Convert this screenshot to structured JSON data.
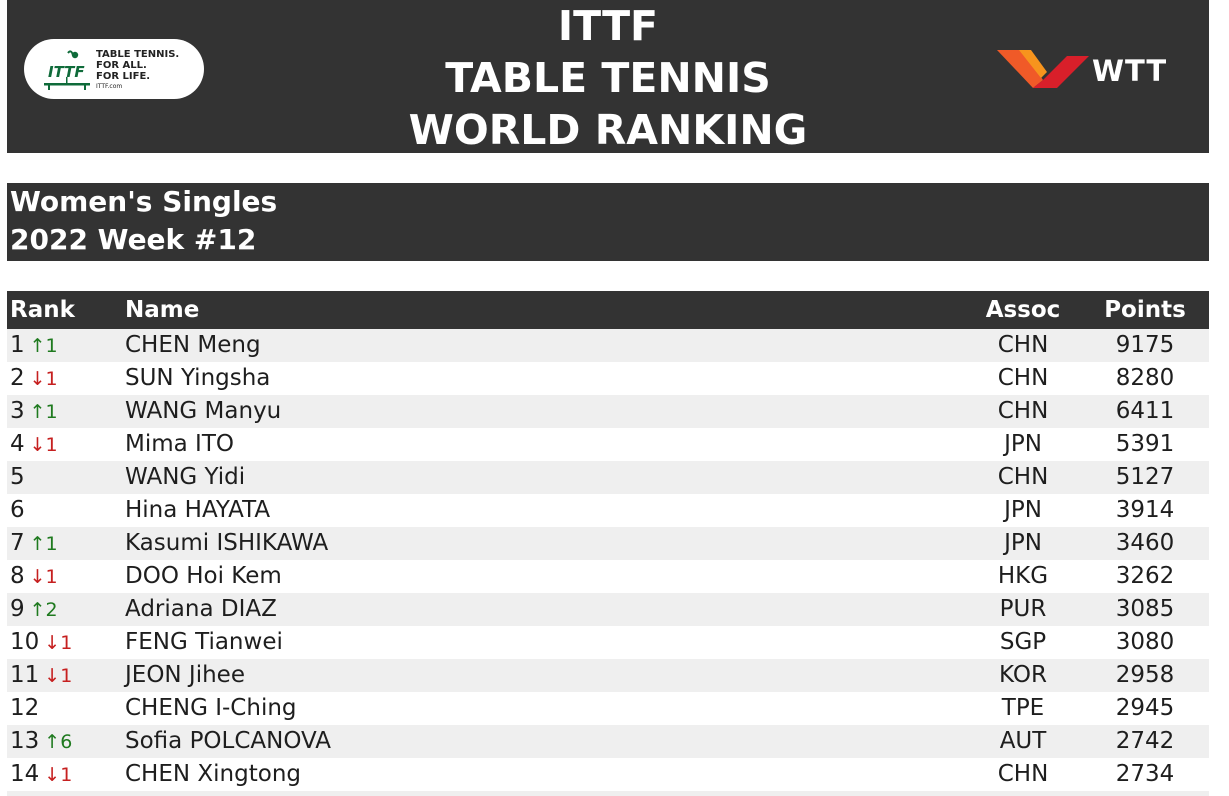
{
  "banner": {
    "title_lines": [
      "ITTF",
      "TABLE TENNIS",
      "WORLD RANKING"
    ],
    "ittf_logo": {
      "icon": "ittf-table-tennis-logo",
      "tagline": [
        "TABLE TENNIS.",
        "FOR ALL.",
        "FOR LIFE."
      ],
      "site": "ITTF.com"
    },
    "wtt_logo": {
      "icon": "wtt-logo-mark",
      "text": "WTT"
    }
  },
  "section": {
    "event": "Women's Singles",
    "week": "2022 Week #12"
  },
  "table": {
    "columns": {
      "rank": "Rank",
      "name": "Name",
      "assoc": "Assoc",
      "points": "Points"
    },
    "rows": [
      {
        "rank": "1",
        "move": "↑1",
        "dir": "up",
        "name": "CHEN Meng",
        "assoc": "CHN",
        "points": "9175"
      },
      {
        "rank": "2",
        "move": "↓1",
        "dir": "down",
        "name": "SUN Yingsha",
        "assoc": "CHN",
        "points": "8280"
      },
      {
        "rank": "3",
        "move": "↑1",
        "dir": "up",
        "name": "WANG Manyu",
        "assoc": "CHN",
        "points": "6411"
      },
      {
        "rank": "4",
        "move": "↓1",
        "dir": "down",
        "name": "Mima ITO",
        "assoc": "JPN",
        "points": "5391"
      },
      {
        "rank": "5",
        "move": "",
        "dir": "",
        "name": "WANG Yidi",
        "assoc": "CHN",
        "points": "5127"
      },
      {
        "rank": "6",
        "move": "",
        "dir": "",
        "name": "Hina HAYATA",
        "assoc": "JPN",
        "points": "3914"
      },
      {
        "rank": "7",
        "move": "↑1",
        "dir": "up",
        "name": "Kasumi ISHIKAWA",
        "assoc": "JPN",
        "points": "3460"
      },
      {
        "rank": "8",
        "move": "↓1",
        "dir": "down",
        "name": "DOO Hoi Kem",
        "assoc": "HKG",
        "points": "3262"
      },
      {
        "rank": "9",
        "move": "↑2",
        "dir": "up",
        "name": "Adriana DIAZ",
        "assoc": "PUR",
        "points": "3085"
      },
      {
        "rank": "10",
        "move": "↓1",
        "dir": "down",
        "name": "FENG Tianwei",
        "assoc": "SGP",
        "points": "3080"
      },
      {
        "rank": "11",
        "move": "↓1",
        "dir": "down",
        "name": "JEON Jihee",
        "assoc": "KOR",
        "points": "2958"
      },
      {
        "rank": "12",
        "move": "",
        "dir": "",
        "name": "CHENG I-Ching",
        "assoc": "TPE",
        "points": "2945"
      },
      {
        "rank": "13",
        "move": "↑6",
        "dir": "up",
        "name": "Sofia POLCANOVA",
        "assoc": "AUT",
        "points": "2742"
      },
      {
        "rank": "14",
        "move": "↓1",
        "dir": "down",
        "name": "CHEN Xingtong",
        "assoc": "CHN",
        "points": "2734"
      }
    ]
  },
  "colors": {
    "header_bg": "#333333",
    "row_alt": "#efefef",
    "up": "#1f7a1f",
    "down": "#c62020",
    "wtt_orange": "#f05a28",
    "wtt_red": "#d81f2a",
    "ittf_green": "#0f6b3a"
  }
}
